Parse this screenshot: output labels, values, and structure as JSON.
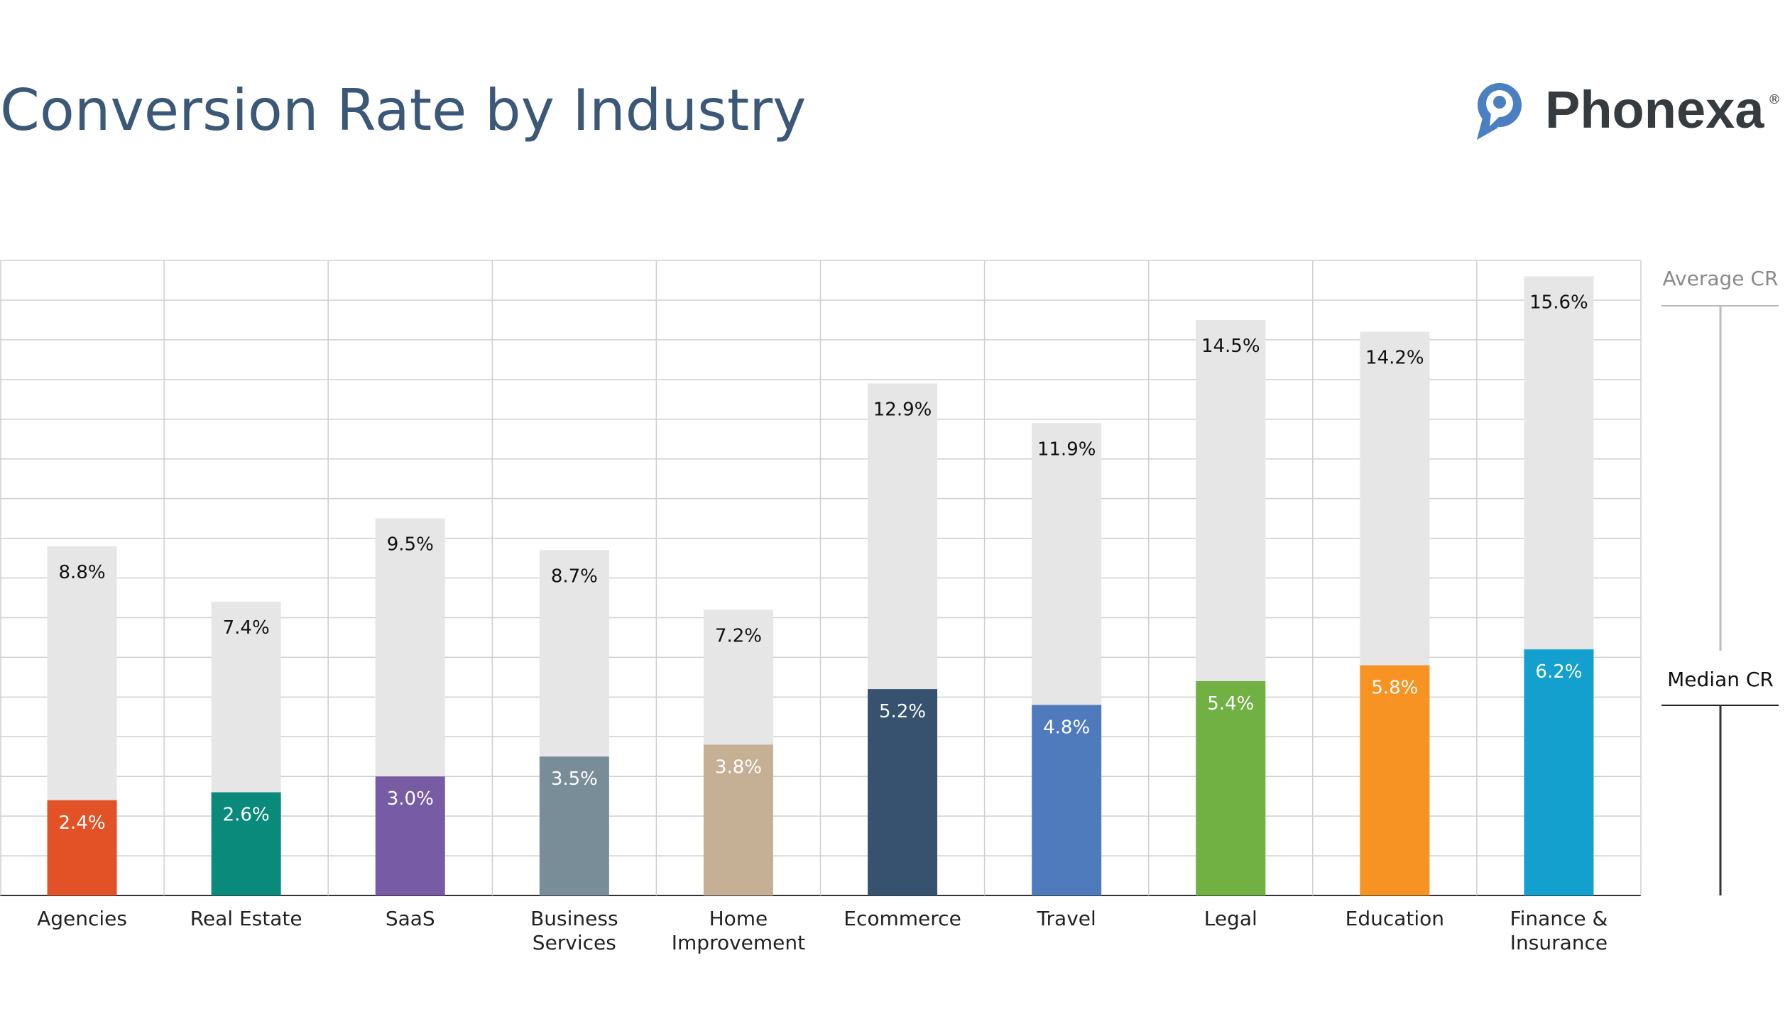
{
  "header": {
    "title": "Conversion Rate by Industry",
    "logo_text": "Phonexa",
    "logo_mark": "®"
  },
  "legend": {
    "average_label": "Average CR",
    "median_label": "Median CR"
  },
  "chart_data": {
    "type": "bar",
    "title": "Conversion Rate by Industry",
    "xlabel": "",
    "ylabel": "",
    "ylim": [
      0,
      16
    ],
    "grid": true,
    "legend_placement": "right",
    "categories": [
      [
        "Agencies"
      ],
      [
        "Real Estate"
      ],
      [
        "SaaS"
      ],
      [
        "Business",
        "Services"
      ],
      [
        "Home",
        "Improvement"
      ],
      [
        "Ecommerce"
      ],
      [
        "Travel"
      ],
      [
        "Legal"
      ],
      [
        "Education"
      ],
      [
        "Finance &",
        "Insurance"
      ]
    ],
    "series": [
      {
        "name": "Average CR",
        "values": [
          8.8,
          7.4,
          9.5,
          8.7,
          7.2,
          12.9,
          11.9,
          14.5,
          14.2,
          15.6
        ],
        "labels": [
          "8.8%",
          "7.4%",
          "9.5%",
          "8.7%",
          "7.2%",
          "12.9%",
          "11.9%",
          "14.5%",
          "14.2%",
          "15.6%"
        ],
        "color": "#e6e6e6"
      },
      {
        "name": "Median CR",
        "values": [
          2.4,
          2.6,
          3.0,
          3.5,
          3.8,
          5.2,
          4.8,
          5.4,
          5.8,
          6.2
        ],
        "labels": [
          "2.4%",
          "2.6%",
          "3.0%",
          "3.5%",
          "3.8%",
          "5.2%",
          "4.8%",
          "5.4%",
          "5.8%",
          "6.2%"
        ],
        "colors": [
          "#e35127",
          "#0a8a7a",
          "#775ca5",
          "#798d99",
          "#c6b095",
          "#36526f",
          "#4f7bbd",
          "#71b043",
          "#f69322",
          "#14a0ce"
        ]
      }
    ]
  }
}
